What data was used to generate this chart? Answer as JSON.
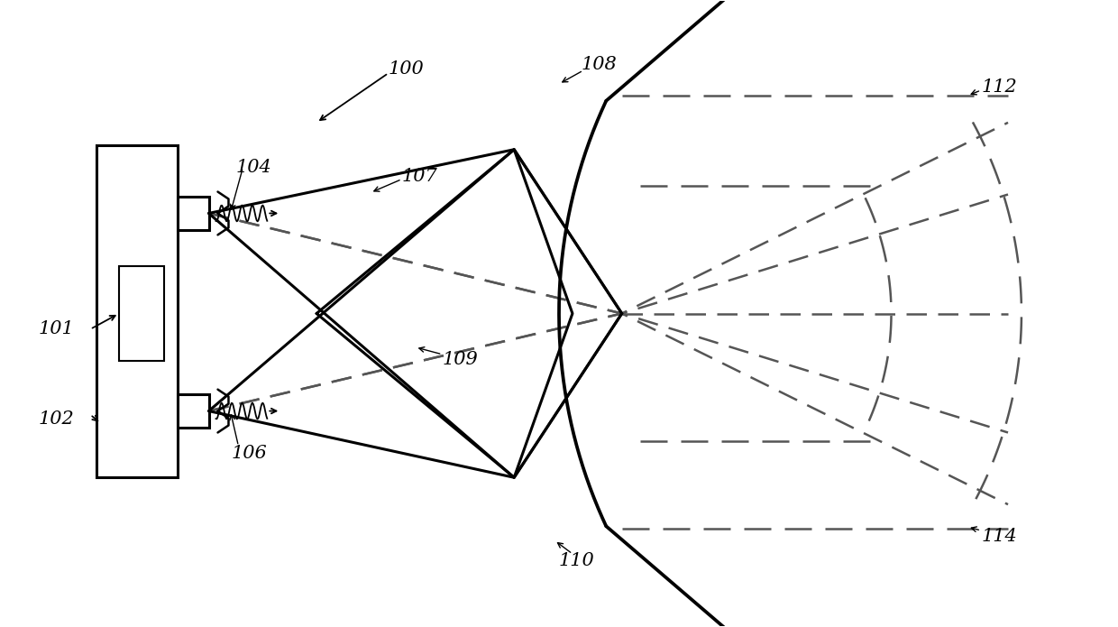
{
  "bg_color": "#ffffff",
  "line_color": "#000000",
  "dashed_color": "#555555",
  "figsize": [
    12.4,
    6.95
  ],
  "dpi": 100,
  "lw_main": 2.2,
  "lw_dashed": 1.8,
  "font_size": 15
}
